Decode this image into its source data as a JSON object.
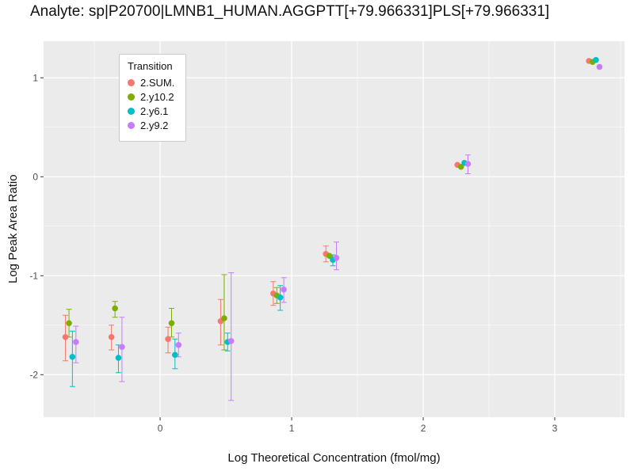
{
  "title": "Analyte: sp|P20700|LMNB1_HUMAN.AGGPTT[+79.966331]PLS[+79.966331]",
  "legend": {
    "title": "Transition"
  },
  "chart_data": {
    "type": "scatter",
    "title": "Analyte: sp|P20700|LMNB1_HUMAN.AGGPTT[+79.966331]PLS[+79.966331]",
    "xlabel": "Log Theoretical Concentration (fmol/mg)",
    "ylabel": "Log Peak Area Ratio",
    "xlim": [
      -0.886,
      3.53
    ],
    "ylim": [
      -2.43,
      1.37
    ],
    "x_ticks": [
      0,
      1,
      2,
      3
    ],
    "y_ticks": [
      -2,
      -1,
      0,
      1
    ],
    "x_minor": [
      -0.5,
      0.5,
      1.5,
      2.5,
      3.5
    ],
    "y_minor": [
      -1.5,
      -0.5,
      0.5
    ],
    "grid": "on",
    "grid_color": "#FFFFFF",
    "panel_bg": "#EBEBEB",
    "tick_label_color": "#4D4D4D",
    "legend_position": "inside-top-left",
    "legend_title": "Transition",
    "series": [
      {
        "name": "2.SUM.",
        "color": "#F8766D",
        "dodge": -0.04,
        "points": [
          {
            "x": -0.68,
            "y": -1.62,
            "lo": -1.86,
            "hi": -1.4
          },
          {
            "x": -0.33,
            "y": -1.62,
            "lo": -1.75,
            "hi": -1.5
          },
          {
            "x": 0.1,
            "y": -1.64,
            "lo": -1.78,
            "hi": -1.52
          },
          {
            "x": 0.5,
            "y": -1.46,
            "lo": -1.7,
            "hi": -1.24
          },
          {
            "x": 0.9,
            "y": -1.18,
            "lo": -1.3,
            "hi": -1.06
          },
          {
            "x": 1.3,
            "y": -0.78,
            "lo": -0.86,
            "hi": -0.7
          },
          {
            "x": 2.3,
            "y": 0.12,
            "lo": null,
            "hi": null
          },
          {
            "x": 3.3,
            "y": 1.17,
            "lo": null,
            "hi": null
          }
        ]
      },
      {
        "name": "2.y10.2",
        "color": "#7CAE00",
        "dodge": -0.013,
        "points": [
          {
            "x": -0.68,
            "y": -1.48,
            "lo": -1.62,
            "hi": -1.34
          },
          {
            "x": -0.33,
            "y": -1.33,
            "lo": -1.42,
            "hi": -1.26
          },
          {
            "x": 0.1,
            "y": -1.48,
            "lo": -1.62,
            "hi": -1.33
          },
          {
            "x": 0.5,
            "y": -1.43,
            "lo": -1.75,
            "hi": -0.99
          },
          {
            "x": 0.9,
            "y": -1.2,
            "lo": -1.28,
            "hi": -1.12
          },
          {
            "x": 1.3,
            "y": -0.8,
            "lo": null,
            "hi": null
          },
          {
            "x": 2.3,
            "y": 0.1,
            "lo": null,
            "hi": null
          },
          {
            "x": 3.3,
            "y": 1.16,
            "lo": null,
            "hi": null
          }
        ]
      },
      {
        "name": "2.y6.1",
        "color": "#00BFC4",
        "dodge": 0.013,
        "points": [
          {
            "x": -0.68,
            "y": -1.82,
            "lo": -2.12,
            "hi": -1.56
          },
          {
            "x": -0.33,
            "y": -1.83,
            "lo": -1.98,
            "hi": -1.7
          },
          {
            "x": 0.1,
            "y": -1.8,
            "lo": -1.94,
            "hi": -1.64
          },
          {
            "x": 0.5,
            "y": -1.67,
            "lo": -1.76,
            "hi": -1.58
          },
          {
            "x": 0.9,
            "y": -1.22,
            "lo": -1.35,
            "hi": -1.1
          },
          {
            "x": 1.3,
            "y": -0.84,
            "lo": -0.9,
            "hi": -0.79
          },
          {
            "x": 2.3,
            "y": 0.14,
            "lo": null,
            "hi": null
          },
          {
            "x": 3.3,
            "y": 1.18,
            "lo": null,
            "hi": null
          }
        ]
      },
      {
        "name": "2.y9.2",
        "color": "#C77CFF",
        "dodge": 0.04,
        "points": [
          {
            "x": -0.68,
            "y": -1.67,
            "lo": -1.88,
            "hi": -1.51
          },
          {
            "x": -0.33,
            "y": -1.72,
            "lo": -2.07,
            "hi": -1.42
          },
          {
            "x": 0.1,
            "y": -1.7,
            "lo": -1.82,
            "hi": -1.58
          },
          {
            "x": 0.5,
            "y": -1.66,
            "lo": -2.26,
            "hi": -0.97
          },
          {
            "x": 0.9,
            "y": -1.14,
            "lo": -1.27,
            "hi": -1.02
          },
          {
            "x": 1.3,
            "y": -0.82,
            "lo": -0.94,
            "hi": -0.66
          },
          {
            "x": 2.3,
            "y": 0.13,
            "lo": 0.03,
            "hi": 0.22
          },
          {
            "x": 3.3,
            "y": 1.11,
            "lo": null,
            "hi": null
          }
        ]
      }
    ]
  }
}
